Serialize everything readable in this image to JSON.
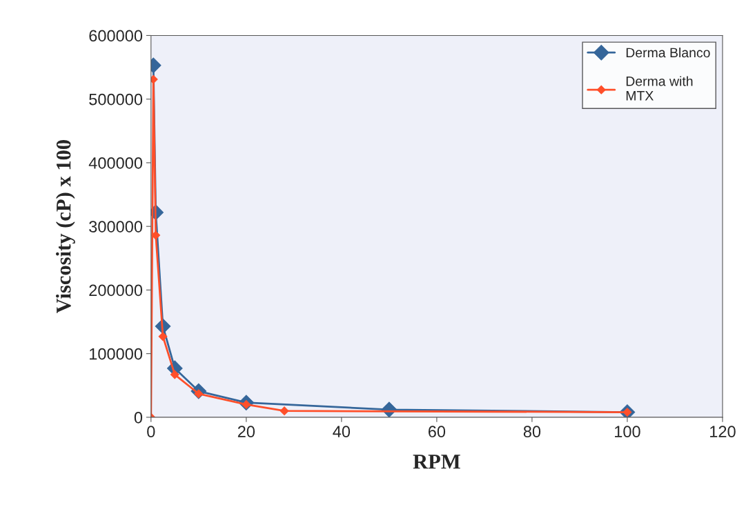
{
  "chart_data": {
    "type": "line",
    "xlabel": "RPM",
    "ylabel": "Viscosity (cP) x 100",
    "xlim": [
      0,
      120
    ],
    "xticks": [
      0,
      20,
      40,
      60,
      80,
      100,
      120
    ],
    "ylim": [
      0,
      600000
    ],
    "yticks": [
      0,
      100000,
      200000,
      300000,
      400000,
      500000,
      600000
    ],
    "series": [
      {
        "name": "Derma Blanco",
        "color": "#35669a",
        "x": [
          0.5,
          1,
          2.5,
          5,
          10,
          20,
          50,
          100
        ],
        "values": [
          553000,
          322000,
          143000,
          77000,
          41000,
          23000,
          12000,
          8000
        ]
      },
      {
        "name": "Derma with\nMTX",
        "color": "#ff4f2a",
        "x": [
          0,
          0.5,
          1,
          2.5,
          5,
          10,
          20,
          28,
          100
        ],
        "values": [
          0,
          531000,
          286000,
          127000,
          67000,
          37000,
          20000,
          10000,
          8000
        ]
      }
    ],
    "marker": "diamond",
    "line_style": "solid",
    "grid": false,
    "legend": "top right"
  }
}
